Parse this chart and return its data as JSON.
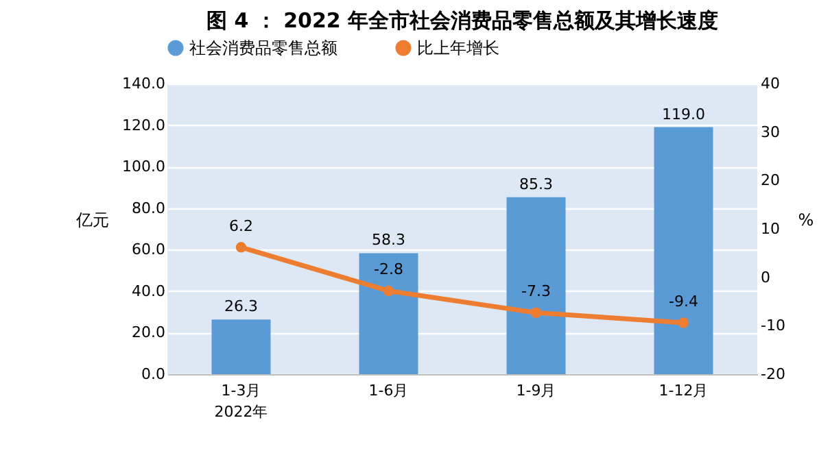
{
  "chart_data": {
    "type": "bar",
    "title": "图 4 ： 2022 年全市社会消费品零售总额及其增长速度",
    "categories": [
      "1-3月",
      "1-6月",
      "1-9月",
      "1-12月"
    ],
    "series": [
      {
        "name": "社会消费品零售总额",
        "color": "#5b9bd5",
        "values": [
          26.3,
          58.3,
          85.3,
          119.0
        ],
        "value_labels": [
          "26.3",
          "58.3",
          "85.3",
          "119.0"
        ]
      },
      {
        "name": "比上年增长",
        "type": "line",
        "axis": "y2",
        "color": "#ed7d31",
        "values": [
          6.2,
          -2.8,
          -7.3,
          -9.4
        ],
        "value_labels": [
          "6.2",
          "-2.8",
          "-7.3",
          "-9.4"
        ]
      }
    ],
    "ylabel": "亿元",
    "y2label": "%",
    "ylim": [
      0,
      140
    ],
    "yticks": [
      {
        "value": 0,
        "label": "0.0"
      },
      {
        "value": 20,
        "label": "20.0"
      },
      {
        "value": 40,
        "label": "40.0"
      },
      {
        "value": 60,
        "label": "60.0"
      },
      {
        "value": 80,
        "label": "80.0"
      },
      {
        "value": 100,
        "label": "100.0"
      },
      {
        "value": 120,
        "label": "120.0"
      },
      {
        "value": 140,
        "label": "140.0"
      }
    ],
    "y2lim": [
      -20,
      40
    ],
    "y2ticks": [
      -20,
      -10,
      0,
      10,
      20,
      30,
      40
    ],
    "annotations": [
      "2022年"
    ],
    "grid": "y",
    "legend": "top",
    "marker": "circle",
    "line_style": "solid"
  }
}
